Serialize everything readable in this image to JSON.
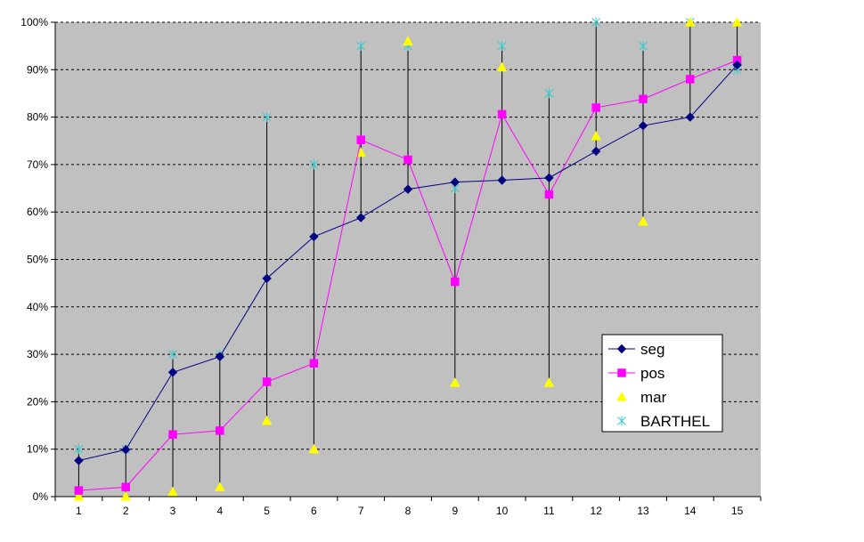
{
  "chart_data": {
    "type": "line",
    "title": "",
    "xlabel": "",
    "ylabel": "",
    "categories": [
      "1",
      "2",
      "3",
      "4",
      "5",
      "6",
      "7",
      "8",
      "9",
      "10",
      "11",
      "12",
      "13",
      "14",
      "15"
    ],
    "y_ticks": [
      "0%",
      "10%",
      "20%",
      "30%",
      "40%",
      "50%",
      "60%",
      "70%",
      "80%",
      "90%",
      "100%"
    ],
    "ylim": [
      0,
      100
    ],
    "grid": true,
    "legend_position": "right",
    "plot_background": "#c0c0c0",
    "high_low_lines": true,
    "series": [
      {
        "name": "seg",
        "color": "#000080",
        "marker": "diamond",
        "line": true,
        "values": [
          7.6,
          9.9,
          26.2,
          29.5,
          46.0,
          54.8,
          58.8,
          64.8,
          66.3,
          66.7,
          67.2,
          72.8,
          78.2,
          80.0,
          91.0
        ]
      },
      {
        "name": "pos",
        "color": "#ff00ff",
        "marker": "square",
        "line": true,
        "values": [
          1.3,
          2.0,
          13.1,
          13.9,
          24.2,
          28.1,
          75.2,
          71.0,
          45.3,
          80.6,
          63.7,
          82.0,
          83.8,
          88.0,
          92.0
        ]
      },
      {
        "name": "mar",
        "color": "#ffff00",
        "marker": "triangle",
        "line": false,
        "values": [
          0,
          0,
          1.0,
          2.0,
          16.0,
          10.0,
          72.5,
          96.0,
          24.0,
          90.5,
          24.0,
          76.0,
          58.0,
          100.0,
          100.0
        ]
      },
      {
        "name": "BARTHEL",
        "color": "#33cccc",
        "marker": "star",
        "line": false,
        "values": [
          10.0,
          10.0,
          30.0,
          30.0,
          80.0,
          70.0,
          95.0,
          95.0,
          65.0,
          95.0,
          85.0,
          100.0,
          95.0,
          100.0,
          90.0
        ]
      }
    ]
  }
}
